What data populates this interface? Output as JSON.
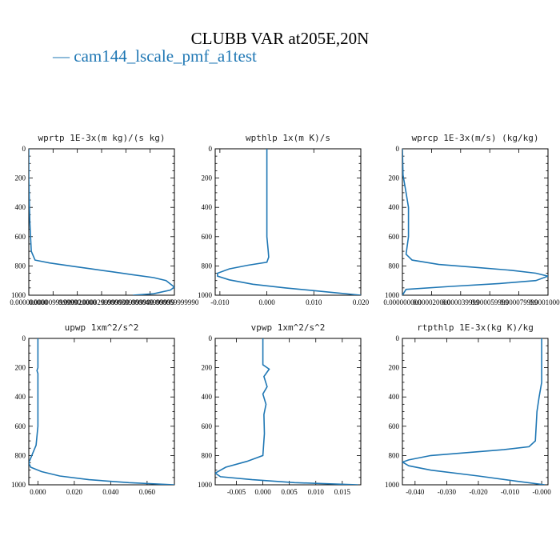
{
  "figure": {
    "title": "CLUBB VAR at205E,20N",
    "legend": [
      {
        "name": "cam144_lscale_pmf_a1test",
        "color": "#1f77b4"
      }
    ]
  },
  "chart_data": [
    {
      "type": "line",
      "title": "wprtp  1E-3x(m kg)/(s kg)",
      "xlim": [
        0.0,
        7e-05
      ],
      "x_tick_labels": [
        "0.000000000",
        "0.000009999999",
        "0.000020000",
        "0.000029999990",
        "0.000039999999",
        "0.000049999999",
        "0.000059999990"
      ],
      "ylim": [
        1000,
        0
      ],
      "y_ticks": [
        0,
        200,
        400,
        600,
        800,
        1000
      ],
      "series": [
        {
          "color": "#1f77b4",
          "x": [
            0.0,
            0.0,
            5e-07,
            1.2e-06,
            3e-06,
            1e-05,
            2e-05,
            3e-05,
            4e-05,
            5e-05,
            6e-05,
            6.6e-05,
            7e-05,
            6.8e-05,
            6e-05,
            5e-05
          ],
          "y": [
            0,
            200,
            500,
            700,
            760,
            780,
            800,
            820,
            840,
            860,
            880,
            900,
            945,
            965,
            990,
            1000
          ]
        }
      ]
    },
    {
      "type": "line",
      "title": "wpthlp  1x(m K)/s",
      "xlim": [
        -0.011,
        0.02
      ],
      "x_ticks": [
        -0.01,
        0.0,
        0.01,
        0.02
      ],
      "x_tick_labels": [
        "-0.010",
        "0.000",
        "0.010",
        "0.020"
      ],
      "ylim": [
        1000,
        0
      ],
      "y_ticks": [
        0,
        200,
        400,
        600,
        800,
        1000
      ],
      "series": [
        {
          "color": "#1f77b4",
          "x": [
            0.0,
            0.0,
            0.0,
            0.0,
            0.0003,
            0.0004,
            0.0,
            -0.004,
            -0.008,
            -0.0105,
            -0.0105,
            -0.008,
            -0.003,
            0.004,
            0.012,
            0.02
          ],
          "y": [
            0,
            200,
            400,
            600,
            700,
            740,
            775,
            795,
            820,
            850,
            870,
            895,
            925,
            950,
            975,
            1000
          ]
        }
      ]
    },
    {
      "type": "line",
      "title": "wprcp  1E-3x(m/s) (kg/kg)",
      "xlim": [
        0.0,
        0.00012
      ],
      "x_tick_labels": [
        "0.000000000",
        "0.000020000",
        "0.000039999",
        "0.000059999",
        "0.000079999",
        "0.000100000"
      ],
      "ylim": [
        1000,
        0
      ],
      "y_ticks": [
        0,
        200,
        400,
        600,
        800,
        1000
      ],
      "series": [
        {
          "color": "#1f77b4",
          "x": [
            0.0,
            5e-07,
            3e-06,
            5e-06,
            5e-06,
            3e-06,
            8e-06,
            3e-05,
            6e-05,
            9e-05,
            0.00011,
            0.00012,
            0.00011,
            8e-05,
            4e-05,
            3e-06,
            0.0
          ],
          "y": [
            0,
            180,
            300,
            400,
            600,
            720,
            760,
            790,
            810,
            830,
            850,
            870,
            900,
            920,
            940,
            960,
            1000
          ]
        }
      ]
    },
    {
      "type": "line",
      "title": "upwp  1xm^2/s^2",
      "xlim": [
        -0.005,
        0.075
      ],
      "x_ticks": [
        0.0,
        0.02,
        0.04,
        0.06
      ],
      "x_tick_labels": [
        "0.000",
        "0.020",
        "0.040",
        "0.060"
      ],
      "ylim": [
        1000,
        0
      ],
      "y_ticks": [
        0,
        200,
        400,
        600,
        800,
        1000
      ],
      "series": [
        {
          "color": "#1f77b4",
          "x": [
            0.0,
            0.0,
            -0.0005,
            0.0,
            0.0,
            0.0,
            -0.001,
            -0.003,
            -0.005,
            -0.004,
            0.002,
            0.012,
            0.028,
            0.05,
            0.075
          ],
          "y": [
            0,
            200,
            220,
            240,
            400,
            600,
            730,
            790,
            850,
            880,
            910,
            940,
            965,
            985,
            1000
          ]
        }
      ]
    },
    {
      "type": "line",
      "title": "vpwp  1xm^2/s^2",
      "xlim": [
        -0.009,
        0.0185
      ],
      "x_ticks": [
        -0.005,
        0.0,
        0.005,
        0.01,
        0.015
      ],
      "x_tick_labels": [
        "-0.005",
        "0.000",
        "0.005",
        "0.010",
        "0.015"
      ],
      "ylim": [
        1000,
        0
      ],
      "y_ticks": [
        0,
        200,
        400,
        600,
        800,
        1000
      ],
      "series": [
        {
          "color": "#1f77b4",
          "x": [
            0.0,
            0.0,
            0.0012,
            0.0002,
            0.0008,
            0.0,
            0.0006,
            0.0002,
            0.0003,
            0.0,
            -0.003,
            -0.007,
            -0.009,
            -0.008,
            -0.002,
            0.006,
            0.018
          ],
          "y": [
            0,
            180,
            210,
            260,
            330,
            380,
            450,
            520,
            650,
            800,
            840,
            880,
            920,
            945,
            965,
            985,
            1000
          ]
        }
      ]
    },
    {
      "type": "line",
      "title": "rtpthlp  1E-3x(kg K)/kg",
      "xlim": [
        -0.044,
        0.002
      ],
      "x_ticks": [
        -0.04,
        -0.03,
        -0.02,
        -0.01,
        0.0
      ],
      "x_tick_labels": [
        "-0.040",
        "-0.030",
        "-0.020",
        "-0.010",
        "-0.000"
      ],
      "ylim": [
        1000,
        0
      ],
      "y_ticks": [
        0,
        200,
        400,
        600,
        800,
        1000
      ],
      "series": [
        {
          "color": "#1f77b4",
          "x": [
            0.0,
            0.0,
            -0.0008,
            -0.0015,
            -0.002,
            -0.004,
            -0.012,
            -0.035,
            -0.042,
            -0.044,
            -0.042,
            -0.035,
            -0.02,
            -0.008,
            0.001
          ],
          "y": [
            0,
            300,
            400,
            500,
            700,
            740,
            760,
            800,
            830,
            845,
            870,
            900,
            940,
            975,
            1000
          ]
        }
      ]
    }
  ]
}
